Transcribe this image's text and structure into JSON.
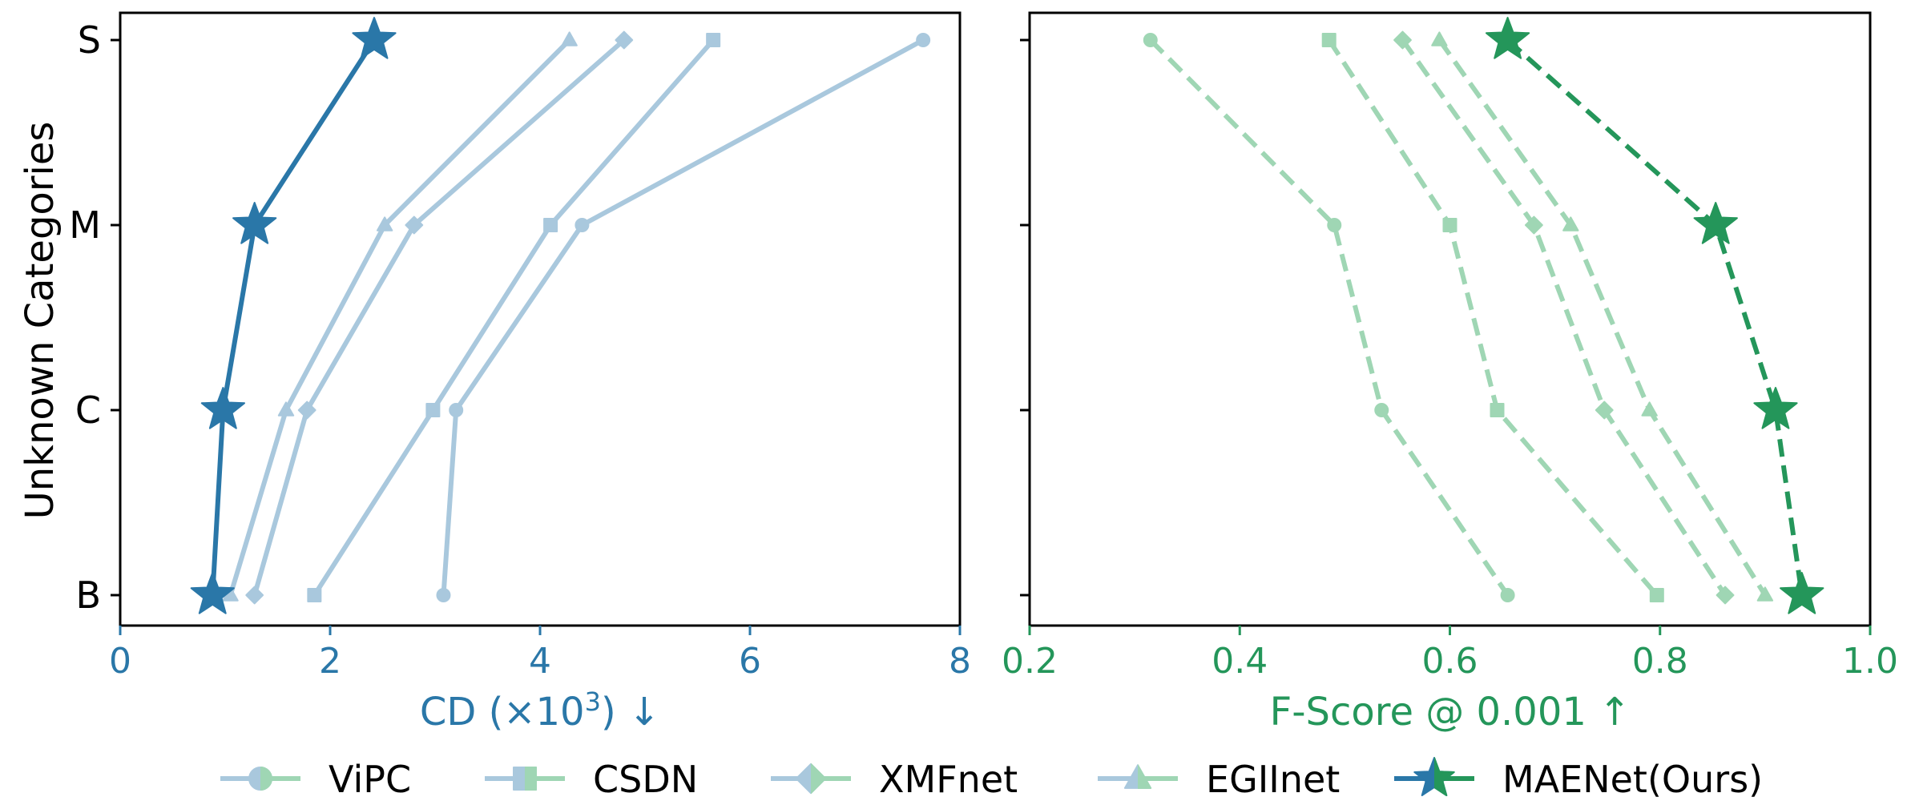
{
  "colors": {
    "left_main": "#2a77a8",
    "left_faded": "#a9c8dd",
    "right_main": "#24965a",
    "right_faded": "#9fd6b4",
    "axis": "#000000"
  },
  "y_categories": [
    "S",
    "M",
    "C",
    "B"
  ],
  "y_axis_label": "Unknown Categories",
  "chart_data": [
    {
      "type": "line",
      "xlabel": "CD (×10",
      "xlabel_sup": "3",
      "xlabel_suffix": ") ↓",
      "xlim": [
        0,
        8
      ],
      "xticks": [
        0,
        2,
        4,
        6,
        8
      ],
      "tick_labels": [
        "0",
        "2",
        "4",
        "6",
        "8"
      ],
      "categories": [
        "S",
        "M",
        "C",
        "B"
      ],
      "series": [
        {
          "name": "ViPC",
          "marker": "circle",
          "x": [
            7.65,
            4.4,
            3.2,
            3.08
          ]
        },
        {
          "name": "CSDN",
          "marker": "square",
          "x": [
            5.65,
            4.1,
            2.98,
            1.85
          ]
        },
        {
          "name": "XMFnet",
          "marker": "diamond",
          "x": [
            4.8,
            2.8,
            1.78,
            1.28
          ]
        },
        {
          "name": "EGIInet",
          "marker": "triangle",
          "x": [
            4.28,
            2.52,
            1.58,
            1.05
          ]
        },
        {
          "name": "MAENet(Ours)",
          "marker": "star",
          "x": [
            2.42,
            1.28,
            0.98,
            0.88
          ]
        }
      ]
    },
    {
      "type": "line",
      "xlabel": "F-Score @ 0.001 ↑",
      "xlim": [
        0.2,
        1.0
      ],
      "xticks": [
        0.2,
        0.4,
        0.6,
        0.8,
        1.0
      ],
      "tick_labels": [
        "0.2",
        "0.4",
        "0.6",
        "0.8",
        "1.0"
      ],
      "categories": [
        "S",
        "M",
        "C",
        "B"
      ],
      "series": [
        {
          "name": "ViPC",
          "marker": "circle",
          "x": [
            0.315,
            0.49,
            0.535,
            0.655
          ]
        },
        {
          "name": "CSDN",
          "marker": "square",
          "x": [
            0.485,
            0.6,
            0.645,
            0.797
          ]
        },
        {
          "name": "XMFnet",
          "marker": "diamond",
          "x": [
            0.555,
            0.68,
            0.747,
            0.862
          ]
        },
        {
          "name": "EGIInet",
          "marker": "triangle",
          "x": [
            0.59,
            0.715,
            0.79,
            0.9
          ]
        },
        {
          "name": "MAENet(Ours)",
          "marker": "star",
          "x": [
            0.655,
            0.853,
            0.91,
            0.935
          ]
        }
      ]
    }
  ],
  "legend": {
    "placement": "bottom",
    "items": [
      "ViPC",
      "CSDN",
      "XMFnet",
      "EGIInet",
      "MAENet(Ours)"
    ]
  }
}
